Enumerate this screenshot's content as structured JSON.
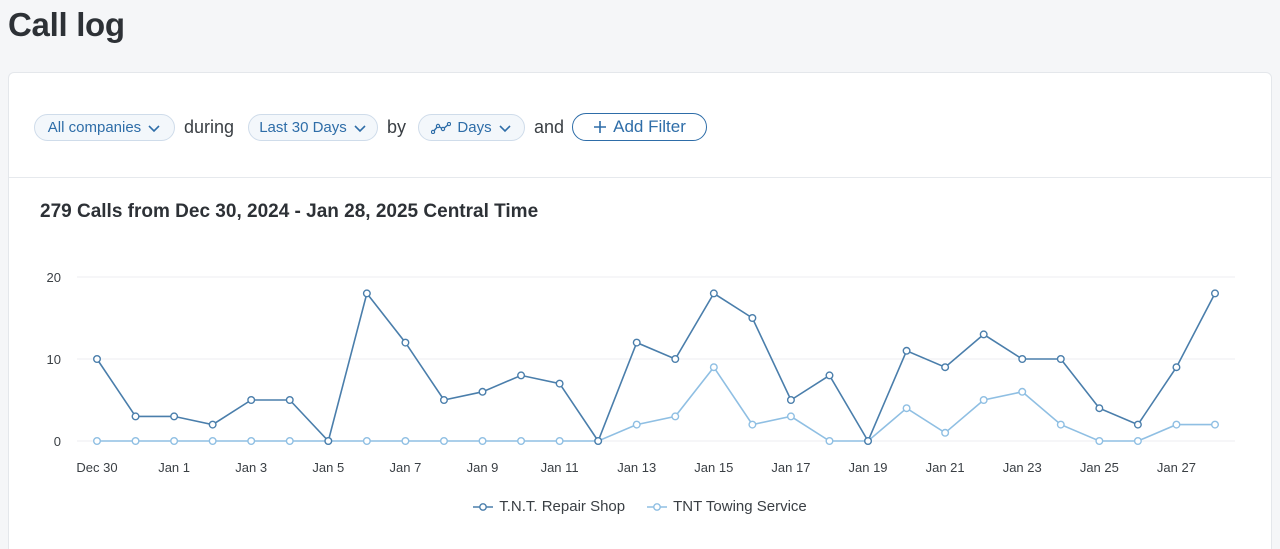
{
  "page": {
    "title": "Call log"
  },
  "filters": {
    "company": "All companies",
    "during_word": "during",
    "range": "Last 30 Days",
    "by_word": "by",
    "interval": "Days",
    "and_word": "and",
    "add_filter": "Add Filter"
  },
  "chart_heading": "279 Calls from Dec 30, 2024 - Jan 28, 2025 Central Time",
  "colors": {
    "accent": "#2e6da8",
    "series1": "#4a7eab",
    "series2": "#8fbfe3",
    "grid": "#eceef1"
  },
  "chart_data": {
    "type": "line",
    "title": "279 Calls from Dec 30, 2024 - Jan 28, 2025 Central Time",
    "xlabel": "",
    "ylabel": "",
    "ylim": [
      0,
      20
    ],
    "yticks": [
      0,
      10,
      20
    ],
    "x": [
      "Dec 30",
      "Dec 31",
      "Jan 1",
      "Jan 2",
      "Jan 3",
      "Jan 4",
      "Jan 5",
      "Jan 6",
      "Jan 7",
      "Jan 8",
      "Jan 9",
      "Jan 10",
      "Jan 11",
      "Jan 12",
      "Jan 13",
      "Jan 14",
      "Jan 15",
      "Jan 16",
      "Jan 17",
      "Jan 18",
      "Jan 19",
      "Jan 20",
      "Jan 21",
      "Jan 22",
      "Jan 23",
      "Jan 24",
      "Jan 25",
      "Jan 26",
      "Jan 27",
      "Jan 28"
    ],
    "xtick_labels": [
      "Dec 30",
      "Jan 1",
      "Jan 3",
      "Jan 5",
      "Jan 7",
      "Jan 9",
      "Jan 11",
      "Jan 13",
      "Jan 15",
      "Jan 17",
      "Jan 19",
      "Jan 21",
      "Jan 23",
      "Jan 25",
      "Jan 27"
    ],
    "grid": true,
    "legend": "bottom-center",
    "series": [
      {
        "name": "T.N.T. Repair Shop",
        "color": "#4a7eab",
        "values": [
          10,
          3,
          3,
          2,
          5,
          5,
          0,
          18,
          12,
          5,
          6,
          8,
          7,
          0,
          12,
          10,
          18,
          15,
          5,
          8,
          0,
          11,
          9,
          13,
          10,
          10,
          4,
          2,
          9,
          18
        ]
      },
      {
        "name": "TNT Towing Service",
        "color": "#8fbfe3",
        "values": [
          0,
          0,
          0,
          0,
          0,
          0,
          0,
          0,
          0,
          0,
          0,
          0,
          0,
          0,
          2,
          3,
          9,
          2,
          3,
          0,
          0,
          4,
          1,
          5,
          6,
          2,
          0,
          0,
          2,
          2
        ]
      }
    ]
  }
}
